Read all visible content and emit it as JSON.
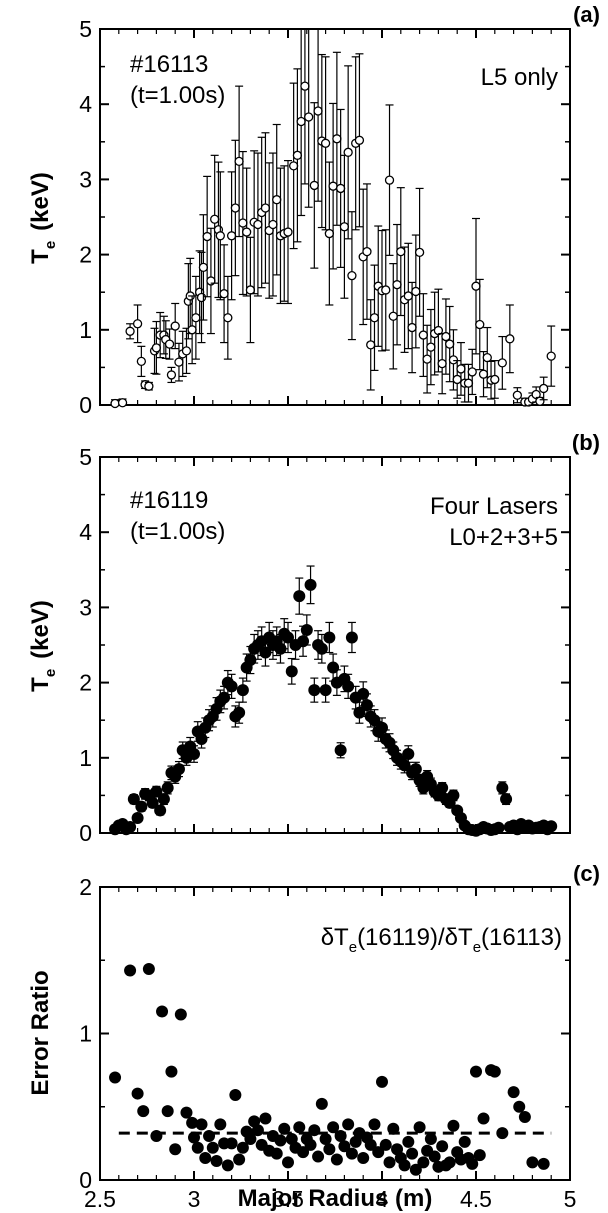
{
  "chart_data": [
    {
      "type": "scatter",
      "panel_label": "(a)",
      "ylabel": "T",
      "ylabel_sub": "e",
      "ylabel_unit": "(keV)",
      "ylim": [
        0,
        5
      ],
      "xlim": [
        2.5,
        5
      ],
      "y_ticks": [
        "0",
        "1",
        "2",
        "3",
        "4",
        "5"
      ],
      "annotations": {
        "shot": "#16113",
        "time": "(t=1.00s)",
        "lasers_line1": "L5 only",
        "lasers_line2": ""
      },
      "marker": "open-circle",
      "series": [
        {
          "x": [
            2.58,
            2.62,
            2.66,
            2.7,
            2.72,
            2.74,
            2.76,
            2.79,
            2.8,
            2.82,
            2.84,
            2.85,
            2.87,
            2.88,
            2.9,
            2.92,
            2.94,
            2.96,
            2.97,
            2.98,
            2.99,
            3.01,
            3.03,
            3.04,
            3.05,
            3.07,
            3.09,
            3.11,
            3.13,
            3.14,
            3.16,
            3.18,
            3.2,
            3.22,
            3.24,
            3.26,
            3.28,
            3.3,
            3.32,
            3.34,
            3.36,
            3.38,
            3.4,
            3.42,
            3.44,
            3.46,
            3.48,
            3.5,
            3.53,
            3.55,
            3.57,
            3.59,
            3.61,
            3.64,
            3.66,
            3.68,
            3.7,
            3.72,
            3.74,
            3.76,
            3.78,
            3.8,
            3.82,
            3.84,
            3.86,
            3.88,
            3.9,
            3.92,
            3.94,
            3.96,
            3.98,
            4.0,
            4.02,
            4.04,
            4.06,
            4.08,
            4.1,
            4.12,
            4.14,
            4.16,
            4.18,
            4.2,
            4.22,
            4.24,
            4.26,
            4.28,
            4.3,
            4.32,
            4.34,
            4.36,
            4.38,
            4.4,
            4.42,
            4.44,
            4.46,
            4.48,
            4.5,
            4.52,
            4.54,
            4.56,
            4.58,
            4.6,
            4.64,
            4.68,
            4.72,
            4.76,
            4.78,
            4.8,
            4.82,
            4.84,
            4.86,
            4.9
          ],
          "y": [
            0.02,
            0.03,
            0.98,
            1.08,
            0.58,
            0.27,
            0.25,
            0.72,
            0.76,
            0.93,
            0.93,
            0.87,
            0.81,
            0.4,
            1.05,
            0.57,
            0.68,
            0.72,
            1.38,
            1.45,
            1.0,
            1.16,
            1.5,
            1.43,
            1.83,
            2.24,
            1.65,
            2.47,
            2.33,
            2.25,
            1.48,
            1.16,
            2.25,
            2.62,
            3.24,
            2.42,
            2.3,
            1.53,
            2.43,
            2.4,
            2.56,
            2.62,
            2.32,
            2.4,
            2.73,
            2.25,
            2.28,
            2.3,
            3.18,
            3.32,
            3.77,
            4.24,
            3.83,
            2.92,
            3.91,
            3.51,
            3.48,
            2.28,
            2.91,
            3.54,
            2.88,
            2.37,
            3.36,
            1.72,
            3.48,
            3.52,
            1.97,
            2.04,
            0.8,
            1.16,
            1.58,
            1.52,
            1.53,
            2.99,
            1.18,
            1.6,
            2.04,
            1.4,
            1.45,
            1.03,
            1.51,
            2.03,
            0.93,
            0.61,
            0.77,
            0.95,
            0.99,
            0.55,
            0.91,
            0.81,
            0.6,
            0.34,
            0.48,
            0.29,
            0.29,
            0.44,
            1.58,
            1.07,
            0.41,
            0.63,
            0.33,
            0.34,
            0.56,
            0.88,
            0.13,
            0.04,
            0.04,
            0.08,
            0.14,
            0.05,
            0.22,
            0.65
          ],
          "err": [
            0.05,
            0.05,
            0.1,
            0.25,
            0.2,
            0.05,
            0.05,
            0.3,
            0.35,
            0.3,
            0.25,
            0.25,
            0.2,
            0.1,
            0.3,
            0.25,
            0.3,
            0.3,
            0.5,
            0.5,
            0.45,
            0.55,
            0.55,
            0.6,
            0.7,
            0.8,
            0.7,
            0.85,
            0.9,
            0.85,
            0.65,
            0.55,
            0.85,
            0.9,
            1.0,
            0.95,
            0.85,
            0.7,
            0.95,
            0.95,
            1.0,
            1.0,
            0.9,
            0.95,
            1.0,
            0.9,
            0.9,
            0.95,
            1.1,
            1.15,
            1.25,
            1.3,
            1.2,
            1.1,
            1.2,
            1.15,
            1.15,
            0.95,
            1.1,
            1.15,
            1.05,
            0.95,
            1.15,
            0.85,
            1.15,
            1.15,
            0.9,
            0.9,
            0.6,
            0.7,
            0.8,
            0.8,
            0.8,
            1.0,
            0.7,
            0.8,
            0.85,
            0.7,
            0.7,
            0.6,
            0.75,
            0.85,
            0.55,
            0.45,
            0.5,
            0.55,
            0.55,
            0.4,
            0.5,
            0.5,
            0.4,
            0.25,
            0.35,
            0.25,
            0.25,
            0.3,
            0.9,
            0.6,
            0.3,
            0.4,
            0.25,
            0.25,
            0.35,
            0.45,
            0.1,
            0.05,
            0.05,
            0.08,
            0.1,
            0.05,
            0.15,
            0.4
          ]
        }
      ]
    },
    {
      "type": "scatter",
      "panel_label": "(b)",
      "ylabel": "T",
      "ylabel_sub": "e",
      "ylabel_unit": "(keV)",
      "ylim": [
        0,
        5
      ],
      "xlim": [
        2.5,
        5
      ],
      "y_ticks": [
        "0",
        "1",
        "2",
        "3",
        "4",
        "5"
      ],
      "annotations": {
        "shot": "#16119",
        "time": "(t=1.00s)",
        "lasers_line1": "Four Lasers",
        "lasers_line2": "L0+2+3+5"
      },
      "marker": "filled-circle",
      "series": [
        {
          "x": [
            2.58,
            2.6,
            2.62,
            2.64,
            2.66,
            2.68,
            2.7,
            2.72,
            2.74,
            2.76,
            2.78,
            2.8,
            2.82,
            2.84,
            2.86,
            2.88,
            2.9,
            2.92,
            2.94,
            2.96,
            2.98,
            3.0,
            3.02,
            3.04,
            3.06,
            3.08,
            3.1,
            3.12,
            3.14,
            3.16,
            3.18,
            3.2,
            3.22,
            3.24,
            3.26,
            3.28,
            3.3,
            3.32,
            3.34,
            3.36,
            3.38,
            3.4,
            3.42,
            3.44,
            3.46,
            3.48,
            3.5,
            3.52,
            3.54,
            3.56,
            3.58,
            3.6,
            3.62,
            3.64,
            3.66,
            3.68,
            3.7,
            3.72,
            3.74,
            3.76,
            3.78,
            3.8,
            3.82,
            3.84,
            3.86,
            3.88,
            3.9,
            3.92,
            3.94,
            3.96,
            3.98,
            4.0,
            4.02,
            4.04,
            4.06,
            4.08,
            4.1,
            4.12,
            4.14,
            4.16,
            4.18,
            4.2,
            4.22,
            4.24,
            4.26,
            4.28,
            4.3,
            4.32,
            4.34,
            4.36,
            4.38,
            4.4,
            4.42,
            4.44,
            4.46,
            4.48,
            4.5,
            4.52,
            4.54,
            4.56,
            4.58,
            4.6,
            4.62,
            4.64,
            4.66,
            4.68,
            4.7,
            4.72,
            4.74,
            4.76,
            4.78,
            4.8,
            4.82,
            4.84,
            4.86,
            4.88,
            4.9
          ],
          "y": [
            0.05,
            0.1,
            0.12,
            0.05,
            0.08,
            0.45,
            0.2,
            0.35,
            0.52,
            0.5,
            0.4,
            0.55,
            0.3,
            0.45,
            0.6,
            0.8,
            0.75,
            0.85,
            1.1,
            1.0,
            1.15,
            1.05,
            1.35,
            1.25,
            1.4,
            1.5,
            1.55,
            1.65,
            1.75,
            1.8,
            2.0,
            1.95,
            1.55,
            1.6,
            1.9,
            2.2,
            2.3,
            2.45,
            2.5,
            2.55,
            2.4,
            2.6,
            2.5,
            2.55,
            2.45,
            2.65,
            2.6,
            2.15,
            2.5,
            3.15,
            2.55,
            2.7,
            3.3,
            1.9,
            2.5,
            2.45,
            1.9,
            2.6,
            2.2,
            2.0,
            1.1,
            2.05,
            1.95,
            2.6,
            1.8,
            1.6,
            1.85,
            1.7,
            1.55,
            1.5,
            1.35,
            1.4,
            1.25,
            1.2,
            1.1,
            1.0,
            0.95,
            0.9,
            1.05,
            0.8,
            0.85,
            0.7,
            0.6,
            0.75,
            0.65,
            0.55,
            0.5,
            0.6,
            0.45,
            0.4,
            0.5,
            0.3,
            0.2,
            0.1,
            0.05,
            0.04,
            0.03,
            0.05,
            0.08,
            0.06,
            0.04,
            0.05,
            0.07,
            0.6,
            0.45,
            0.08,
            0.1,
            0.05,
            0.12,
            0.08,
            0.1,
            0.06,
            0.07,
            0.08,
            0.1,
            0.05,
            0.09
          ],
          "err": [
            0.03,
            0.03,
            0.03,
            0.03,
            0.03,
            0.06,
            0.05,
            0.06,
            0.07,
            0.07,
            0.06,
            0.07,
            0.06,
            0.07,
            0.08,
            0.09,
            0.09,
            0.1,
            0.11,
            0.1,
            0.12,
            0.11,
            0.13,
            0.12,
            0.13,
            0.14,
            0.14,
            0.15,
            0.15,
            0.15,
            0.16,
            0.16,
            0.14,
            0.14,
            0.16,
            0.18,
            0.18,
            0.19,
            0.19,
            0.19,
            0.18,
            0.2,
            0.19,
            0.19,
            0.19,
            0.2,
            0.2,
            0.17,
            0.19,
            0.24,
            0.2,
            0.2,
            0.25,
            0.16,
            0.19,
            0.19,
            0.16,
            0.2,
            0.18,
            0.17,
            0.1,
            0.17,
            0.16,
            0.2,
            0.15,
            0.14,
            0.16,
            0.15,
            0.14,
            0.14,
            0.13,
            0.13,
            0.12,
            0.12,
            0.11,
            0.1,
            0.1,
            0.1,
            0.11,
            0.09,
            0.09,
            0.08,
            0.08,
            0.08,
            0.08,
            0.07,
            0.07,
            0.07,
            0.07,
            0.06,
            0.07,
            0.05,
            0.05,
            0.04,
            0.03,
            0.03,
            0.03,
            0.03,
            0.03,
            0.03,
            0.03,
            0.03,
            0.03,
            0.08,
            0.07,
            0.03,
            0.03,
            0.03,
            0.03,
            0.03,
            0.03,
            0.03,
            0.03,
            0.03,
            0.03,
            0.03,
            0.03
          ]
        }
      ]
    },
    {
      "type": "scatter",
      "panel_label": "(c)",
      "ylabel": "Error  Ratio",
      "ylim": [
        0,
        2
      ],
      "xlim": [
        2.5,
        5
      ],
      "y_ticks": [
        "0",
        "1",
        "2"
      ],
      "x_ticks": [
        "2.5",
        "3",
        "3.5",
        "4",
        "4.5",
        "5"
      ],
      "xlabel": "Major  Radius  (m)",
      "annotations": {
        "delta_1": "δT",
        "sub_1": "e",
        "paren_1": "(16119)/δT",
        "sub_2": "e",
        "paren_2": "(16113)"
      },
      "marker": "filled-circle",
      "reference_line": 0.32,
      "series": [
        {
          "x": [
            2.58,
            2.66,
            2.7,
            2.73,
            2.76,
            2.8,
            2.83,
            2.86,
            2.88,
            2.9,
            2.93,
            2.96,
            2.99,
            3.0,
            3.02,
            3.04,
            3.06,
            3.08,
            3.1,
            3.12,
            3.14,
            3.16,
            3.18,
            3.2,
            3.22,
            3.24,
            3.26,
            3.28,
            3.3,
            3.32,
            3.34,
            3.36,
            3.38,
            3.4,
            3.42,
            3.44,
            3.46,
            3.48,
            3.5,
            3.52,
            3.54,
            3.56,
            3.58,
            3.6,
            3.62,
            3.64,
            3.66,
            3.68,
            3.7,
            3.72,
            3.74,
            3.76,
            3.78,
            3.8,
            3.82,
            3.84,
            3.86,
            3.88,
            3.9,
            3.92,
            3.94,
            3.96,
            3.98,
            4.0,
            4.02,
            4.04,
            4.06,
            4.08,
            4.1,
            4.12,
            4.14,
            4.16,
            4.18,
            4.2,
            4.22,
            4.24,
            4.26,
            4.28,
            4.3,
            4.32,
            4.34,
            4.36,
            4.38,
            4.4,
            4.42,
            4.44,
            4.46,
            4.48,
            4.5,
            4.52,
            4.54,
            4.58,
            4.6,
            4.64,
            4.7,
            4.73,
            4.76,
            4.8,
            4.86
          ],
          "y": [
            0.7,
            1.43,
            0.59,
            0.47,
            1.44,
            0.3,
            1.15,
            0.47,
            0.74,
            0.21,
            1.13,
            0.46,
            0.39,
            0.29,
            0.22,
            0.38,
            0.15,
            0.3,
            0.22,
            0.13,
            0.38,
            0.25,
            0.1,
            0.25,
            0.58,
            0.14,
            0.22,
            0.33,
            0.28,
            0.4,
            0.34,
            0.24,
            0.42,
            0.2,
            0.3,
            0.18,
            0.27,
            0.35,
            0.12,
            0.28,
            0.22,
            0.36,
            0.19,
            0.28,
            0.24,
            0.34,
            0.16,
            0.52,
            0.28,
            0.21,
            0.36,
            0.14,
            0.3,
            0.23,
            0.38,
            0.18,
            0.26,
            0.32,
            0.15,
            0.29,
            0.24,
            0.38,
            0.19,
            0.67,
            0.24,
            0.12,
            0.35,
            0.21,
            0.15,
            0.1,
            0.26,
            0.18,
            0.07,
            0.36,
            0.12,
            0.2,
            0.28,
            0.16,
            0.09,
            0.23,
            0.1,
            0.12,
            0.37,
            0.19,
            0.14,
            0.26,
            0.15,
            0.11,
            0.74,
            0.17,
            0.42,
            0.75,
            0.74,
            0.32,
            0.6,
            0.5,
            0.43,
            0.12,
            0.11
          ]
        }
      ]
    }
  ]
}
